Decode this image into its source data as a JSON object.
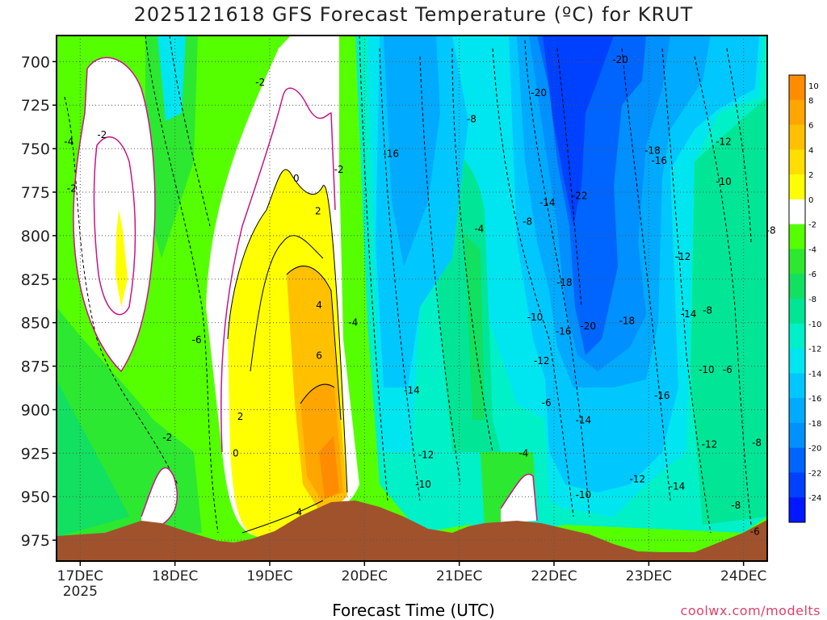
{
  "chart_data": {
    "type": "heatmap",
    "title": "2025121618 GFS Forecast Temperature (ºC) for KRUT",
    "xlabel": "Forecast Time (UTC)",
    "ylabel": "",
    "credit": "coolwx.com/modelts",
    "y_ticks": [
      700,
      725,
      750,
      775,
      800,
      825,
      850,
      875,
      900,
      925,
      950,
      975
    ],
    "ylim": [
      987,
      685
    ],
    "x_ticks": [
      {
        "label": "17DEC",
        "sub": "2025",
        "t": 0.25
      },
      {
        "label": "18DEC",
        "sub": "",
        "t": 1.25
      },
      {
        "label": "19DEC",
        "sub": "",
        "t": 2.25
      },
      {
        "label": "20DEC",
        "sub": "",
        "t": 3.25
      },
      {
        "label": "21DEC",
        "sub": "",
        "t": 4.25
      },
      {
        "label": "22DEC",
        "sub": "",
        "t": 5.25
      },
      {
        "label": "23DEC",
        "sub": "",
        "t": 6.25
      },
      {
        "label": "24DEC",
        "sub": "",
        "t": 7.25
      }
    ],
    "xlim": [
      0,
      7.5
    ],
    "colorbar": [
      {
        "value": 10,
        "color": "#ff8c00"
      },
      {
        "value": 8,
        "color": "#ffa500"
      },
      {
        "value": 6,
        "color": "#ffc000"
      },
      {
        "value": 4,
        "color": "#ffde00"
      },
      {
        "value": 2,
        "color": "#ffff00"
      },
      {
        "value": 0,
        "color": "#ffffff"
      },
      {
        "value": -2,
        "color": "#55ff00"
      },
      {
        "value": -4,
        "color": "#2ce830"
      },
      {
        "value": -6,
        "color": "#11e060"
      },
      {
        "value": -8,
        "color": "#00e696"
      },
      {
        "value": -10,
        "color": "#00f0c8"
      },
      {
        "value": -12,
        "color": "#00e6f0"
      },
      {
        "value": -14,
        "color": "#00c8ff"
      },
      {
        "value": -16,
        "color": "#00aaff"
      },
      {
        "value": -18,
        "color": "#0090ff"
      },
      {
        "value": -20,
        "color": "#0064ff"
      },
      {
        "value": -22,
        "color": "#0040ff"
      },
      {
        "value": -24,
        "color": "#0018ff"
      }
    ],
    "contour_labels": [
      {
        "text": "-4",
        "t": 0.13,
        "p": 746
      },
      {
        "text": "-2",
        "t": 0.48,
        "p": 742
      },
      {
        "text": "-2",
        "t": 0.16,
        "p": 773
      },
      {
        "text": "-2",
        "t": 2.15,
        "p": 712
      },
      {
        "text": "0",
        "t": 2.53,
        "p": 767
      },
      {
        "text": "-2",
        "t": 2.98,
        "p": 762
      },
      {
        "text": "2",
        "t": 2.76,
        "p": 786
      },
      {
        "text": "4",
        "t": 2.77,
        "p": 840
      },
      {
        "text": "6",
        "t": 2.77,
        "p": 869
      },
      {
        "text": "4",
        "t": 2.56,
        "p": 959
      },
      {
        "text": "2",
        "t": 1.94,
        "p": 904
      },
      {
        "text": "0",
        "t": 1.89,
        "p": 925
      },
      {
        "text": "-2",
        "t": 1.17,
        "p": 916
      },
      {
        "text": "-6",
        "t": 1.48,
        "p": 860
      },
      {
        "text": "-4",
        "t": 3.13,
        "p": 850
      },
      {
        "text": "-16",
        "t": 3.53,
        "p": 753
      },
      {
        "text": "-14",
        "t": 3.75,
        "p": 889
      },
      {
        "text": "-12",
        "t": 3.9,
        "p": 926
      },
      {
        "text": "-10",
        "t": 3.87,
        "p": 943
      },
      {
        "text": "-8",
        "t": 4.38,
        "p": 733
      },
      {
        "text": "-4",
        "t": 4.46,
        "p": 796
      },
      {
        "text": "-4",
        "t": 4.93,
        "p": 925
      },
      {
        "text": "-8",
        "t": 4.97,
        "p": 792
      },
      {
        "text": "-14",
        "t": 5.18,
        "p": 781
      },
      {
        "text": "-20",
        "t": 5.09,
        "p": 718
      },
      {
        "text": "-22",
        "t": 5.52,
        "p": 777
      },
      {
        "text": "-18",
        "t": 5.36,
        "p": 827
      },
      {
        "text": "-10",
        "t": 5.05,
        "p": 847
      },
      {
        "text": "-16",
        "t": 5.35,
        "p": 855
      },
      {
        "text": "-20",
        "t": 5.61,
        "p": 852
      },
      {
        "text": "-12",
        "t": 5.12,
        "p": 872
      },
      {
        "text": "-6",
        "t": 5.17,
        "p": 896
      },
      {
        "text": "-14",
        "t": 5.56,
        "p": 906
      },
      {
        "text": "-10",
        "t": 5.56,
        "p": 949
      },
      {
        "text": "-20",
        "t": 5.95,
        "p": 699
      },
      {
        "text": "-18",
        "t": 6.29,
        "p": 751
      },
      {
        "text": "-16",
        "t": 6.36,
        "p": 757
      },
      {
        "text": "-18",
        "t": 6.02,
        "p": 849
      },
      {
        "text": "-12",
        "t": 6.61,
        "p": 812
      },
      {
        "text": "-14",
        "t": 6.67,
        "p": 845
      },
      {
        "text": "-8",
        "t": 6.87,
        "p": 843
      },
      {
        "text": "-16",
        "t": 6.39,
        "p": 892
      },
      {
        "text": "-10",
        "t": 6.86,
        "p": 877
      },
      {
        "text": "-6",
        "t": 7.08,
        "p": 877
      },
      {
        "text": "-12",
        "t": 6.89,
        "p": 920
      },
      {
        "text": "-12",
        "t": 6.13,
        "p": 940
      },
      {
        "text": "-14",
        "t": 6.55,
        "p": 944
      },
      {
        "text": "-8",
        "t": 7.17,
        "p": 955
      },
      {
        "text": "-6",
        "t": 7.37,
        "p": 970
      },
      {
        "text": "-8",
        "t": 7.39,
        "p": 919
      },
      {
        "text": "-12",
        "t": 7.04,
        "p": 746
      },
      {
        "text": "-10",
        "t": 7.04,
        "p": 769
      },
      {
        "text": "-8",
        "t": 7.54,
        "p": 797
      }
    ]
  }
}
